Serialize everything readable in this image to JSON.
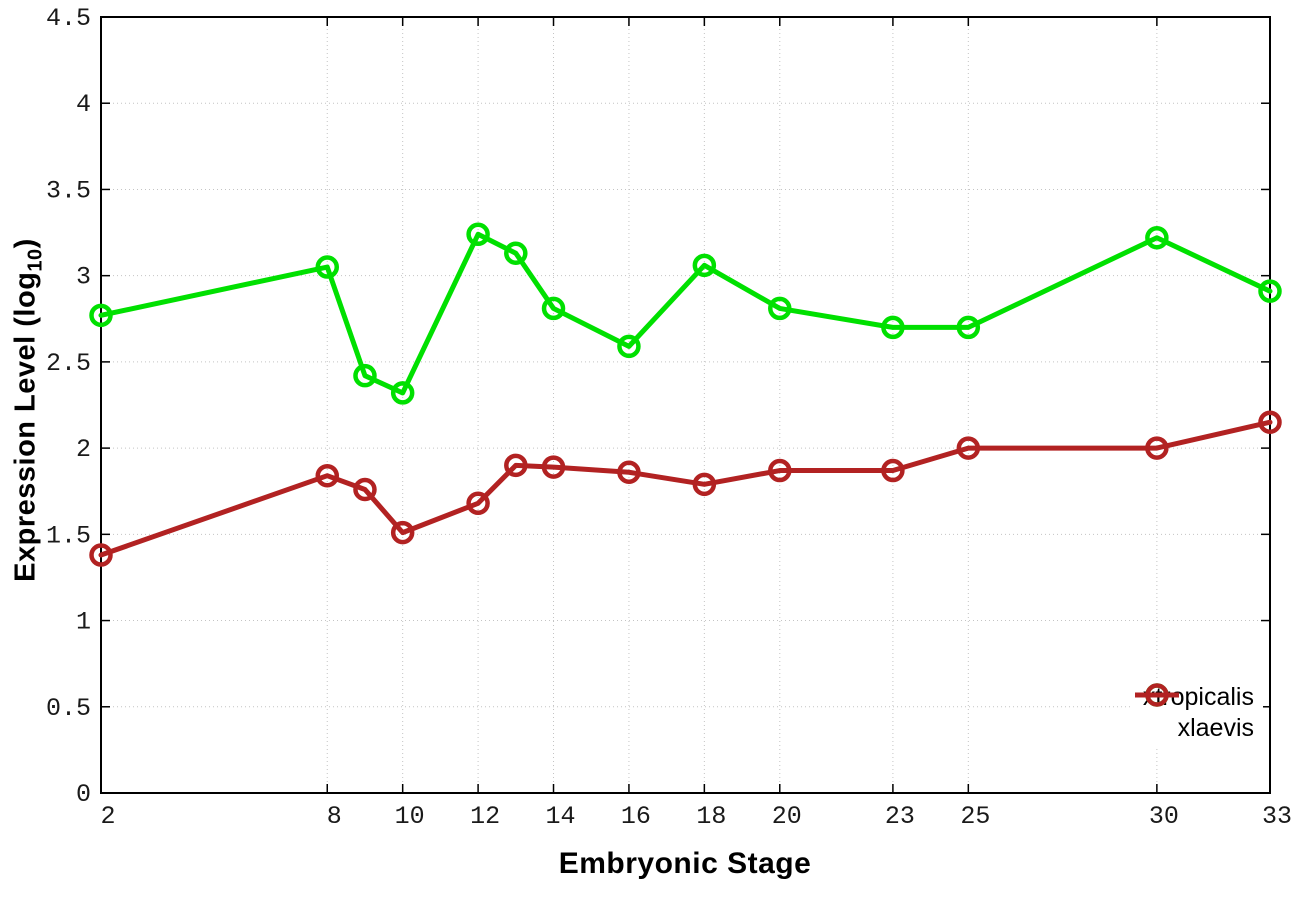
{
  "chart_data": {
    "type": "line",
    "title": "",
    "xlabel": "Embryonic Stage",
    "ylabel": "Expression Level (log10)",
    "ylabel_parts": {
      "pre": "Expression Level (log",
      "sub": "10",
      "post": ")"
    },
    "xlim": [
      2,
      33
    ],
    "ylim": [
      0,
      4.5
    ],
    "grid": true,
    "grid_color": "#c4c4c4",
    "axis_color": "#000000",
    "tick_label_color": "#1a1a1a",
    "legend_position": "bottom-right-inside",
    "x_ticks": [
      2,
      8,
      10,
      12,
      14,
      16,
      18,
      20,
      23,
      25,
      30,
      33
    ],
    "y_ticks": [
      0,
      0.5,
      1,
      1.5,
      2,
      2.5,
      3,
      3.5,
      4,
      4.5
    ],
    "x": [
      2,
      8,
      9,
      10,
      12,
      13,
      14,
      16,
      18,
      20,
      23,
      25,
      30,
      33
    ],
    "series": [
      {
        "name": "xtropicalis",
        "color": "#00e000",
        "marker": "open-circle",
        "values": [
          2.77,
          3.05,
          2.42,
          2.32,
          3.24,
          3.13,
          2.81,
          2.59,
          3.06,
          2.81,
          2.7,
          2.7,
          3.22,
          2.91
        ]
      },
      {
        "name": "xlaevis",
        "color": "#b22222",
        "marker": "open-circle",
        "values": [
          1.38,
          1.84,
          1.76,
          1.51,
          1.68,
          1.9,
          1.89,
          1.86,
          1.79,
          1.87,
          1.87,
          2.0,
          2.0,
          2.15
        ]
      }
    ]
  }
}
